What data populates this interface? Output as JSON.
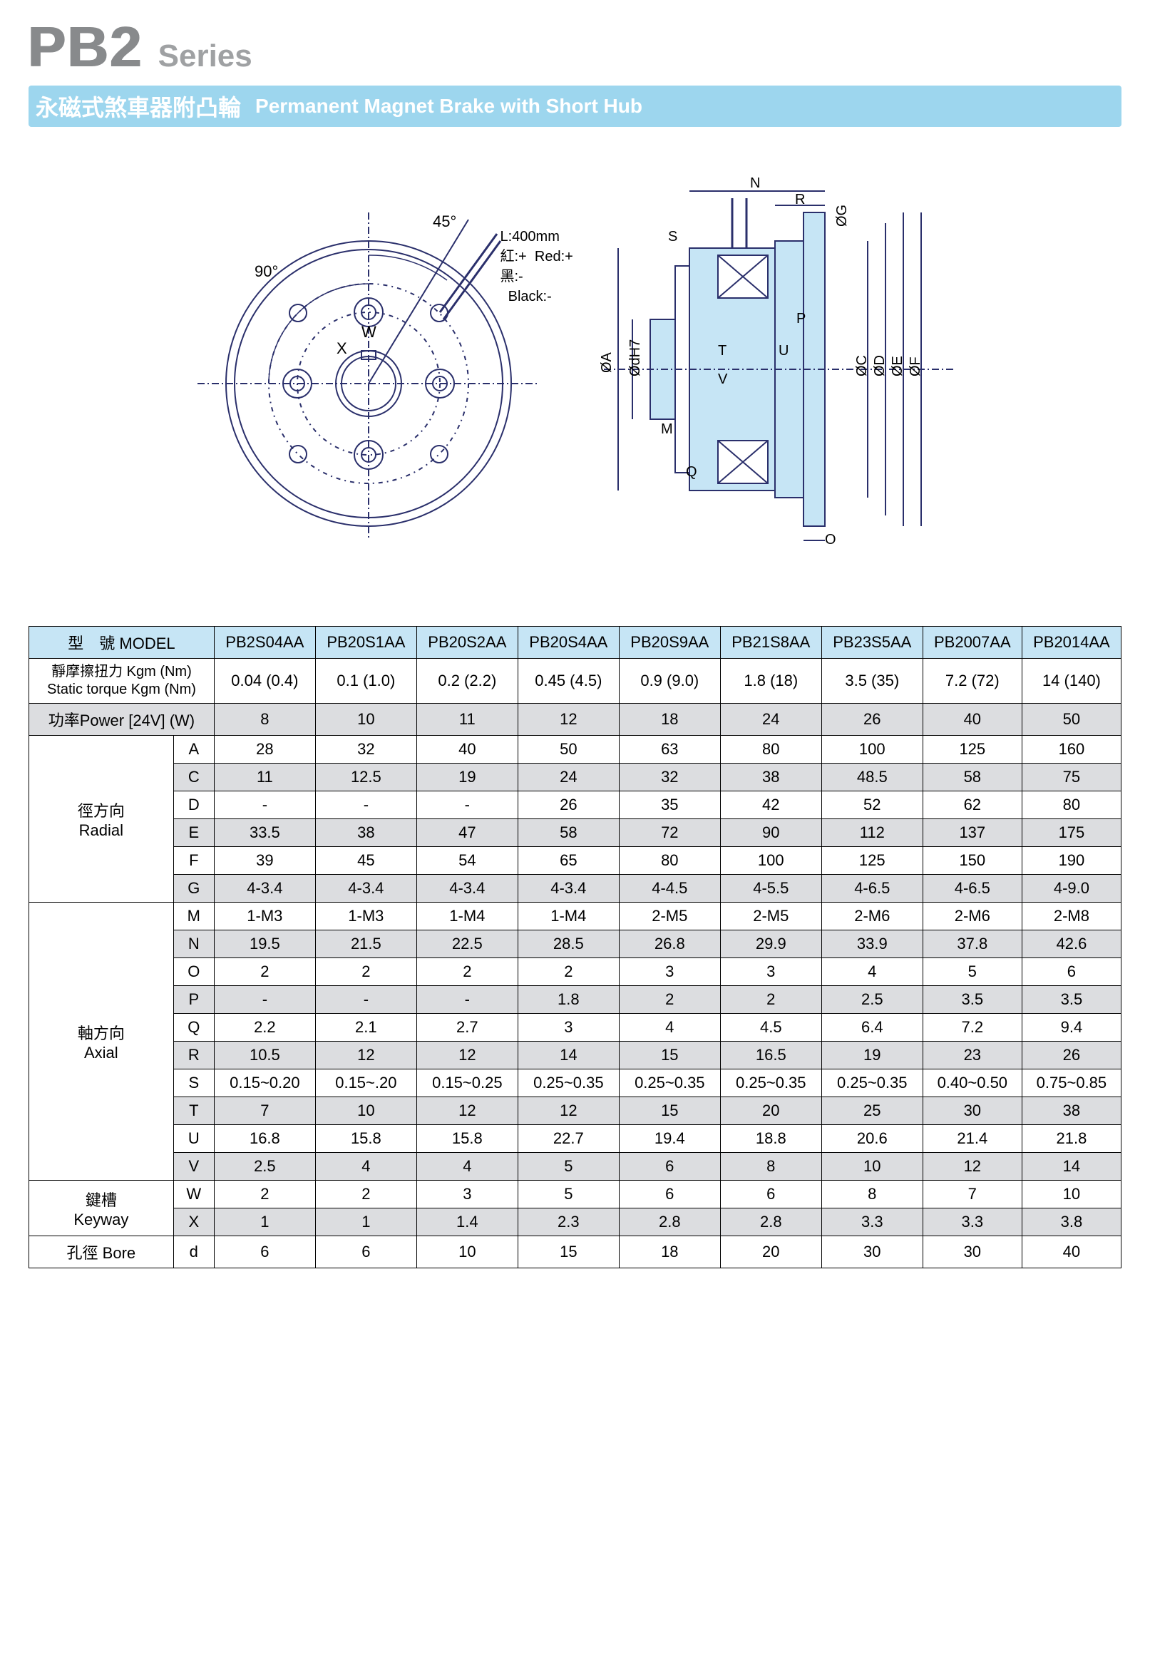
{
  "colors": {
    "accent_blue": "#9dd6ee",
    "header_blue": "#c6e5f5",
    "row_grey": "#dcdde0",
    "title_grey": "#888a8c",
    "border": "#000000",
    "diagram_stroke": "#2a2f6b",
    "diagram_fill": "#c6e5f5"
  },
  "title": {
    "main": "PB2",
    "series": "Series"
  },
  "subtitle": {
    "zh": "永磁式煞車器附凸輪",
    "en": "Permanent Magnet Brake with Short Hub"
  },
  "diagram": {
    "angle_90": "90°",
    "angle_45": "45°",
    "wire_len": "L:400mm",
    "wire_red_zh": "紅:+",
    "wire_red_en": "Red:+",
    "wire_black_zh": "黑:-",
    "wire_black_en": "Black:-",
    "label_W": "W",
    "label_X": "X",
    "label_A": "ØA",
    "label_dH7": "ØdH7",
    "label_C": "ØC",
    "label_D": "ØD",
    "label_E": "ØE",
    "label_F": "ØF",
    "label_G": "ØG",
    "label_M": "M",
    "label_N": "N",
    "label_O": "O",
    "label_P": "P",
    "label_Q": "Q",
    "label_R": "R",
    "label_S": "S",
    "label_T": "T",
    "label_U": "U",
    "label_V": "V"
  },
  "table": {
    "header_model_zh": "型　號",
    "header_model_en": "MODEL",
    "row_torque_zh": "靜摩擦扭力 Kgm (Nm)",
    "row_torque_en": "Static torque Kgm (Nm)",
    "row_power_zh": "功率Power [24V] (W)",
    "group_radial_zh": "徑方向",
    "group_radial_en": "Radial",
    "group_axial_zh": "軸方向",
    "group_axial_en": "Axial",
    "group_keyway_zh": "鍵槽",
    "group_keyway_en": "Keyway",
    "group_bore_zh": "孔徑",
    "group_bore_en": "Bore",
    "models": [
      "PB2S04AA",
      "PB20S1AA",
      "PB20S2AA",
      "PB20S4AA",
      "PB20S9AA",
      "PB21S8AA",
      "PB23S5AA",
      "PB2007AA",
      "PB2014AA"
    ],
    "torque": [
      "0.04 (0.4)",
      "0.1 (1.0)",
      "0.2 (2.2)",
      "0.45 (4.5)",
      "0.9 (9.0)",
      "1.8 (18)",
      "3.5 (35)",
      "7.2 (72)",
      "14 (140)"
    ],
    "power": [
      "8",
      "10",
      "11",
      "12",
      "18",
      "24",
      "26",
      "40",
      "50"
    ],
    "radial": {
      "A": [
        "28",
        "32",
        "40",
        "50",
        "63",
        "80",
        "100",
        "125",
        "160"
      ],
      "C": [
        "11",
        "12.5",
        "19",
        "24",
        "32",
        "38",
        "48.5",
        "58",
        "75"
      ],
      "D": [
        "-",
        "-",
        "-",
        "26",
        "35",
        "42",
        "52",
        "62",
        "80"
      ],
      "E": [
        "33.5",
        "38",
        "47",
        "58",
        "72",
        "90",
        "112",
        "137",
        "175"
      ],
      "F": [
        "39",
        "45",
        "54",
        "65",
        "80",
        "100",
        "125",
        "150",
        "190"
      ],
      "G": [
        "4-3.4",
        "4-3.4",
        "4-3.4",
        "4-3.4",
        "4-4.5",
        "4-5.5",
        "4-6.5",
        "4-6.5",
        "4-9.0"
      ]
    },
    "axial": {
      "M": [
        "1-M3",
        "1-M3",
        "1-M4",
        "1-M4",
        "2-M5",
        "2-M5",
        "2-M6",
        "2-M6",
        "2-M8"
      ],
      "N": [
        "19.5",
        "21.5",
        "22.5",
        "28.5",
        "26.8",
        "29.9",
        "33.9",
        "37.8",
        "42.6"
      ],
      "O": [
        "2",
        "2",
        "2",
        "2",
        "3",
        "3",
        "4",
        "5",
        "6"
      ],
      "P": [
        "-",
        "-",
        "-",
        "1.8",
        "2",
        "2",
        "2.5",
        "3.5",
        "3.5"
      ],
      "Q": [
        "2.2",
        "2.1",
        "2.7",
        "3",
        "4",
        "4.5",
        "6.4",
        "7.2",
        "9.4"
      ],
      "R": [
        "10.5",
        "12",
        "12",
        "14",
        "15",
        "16.5",
        "19",
        "23",
        "26"
      ],
      "S": [
        "0.15~0.20",
        "0.15~.20",
        "0.15~0.25",
        "0.25~0.35",
        "0.25~0.35",
        "0.25~0.35",
        "0.25~0.35",
        "0.40~0.50",
        "0.75~0.85"
      ],
      "T": [
        "7",
        "10",
        "12",
        "12",
        "15",
        "20",
        "25",
        "30",
        "38"
      ],
      "U": [
        "16.8",
        "15.8",
        "15.8",
        "22.7",
        "19.4",
        "18.8",
        "20.6",
        "21.4",
        "21.8"
      ],
      "V": [
        "2.5",
        "4",
        "4",
        "5",
        "6",
        "8",
        "10",
        "12",
        "14"
      ]
    },
    "keyway": {
      "W": [
        "2",
        "2",
        "3",
        "5",
        "6",
        "6",
        "8",
        "7",
        "10"
      ],
      "X": [
        "1",
        "1",
        "1.4",
        "2.3",
        "2.8",
        "2.8",
        "3.3",
        "3.3",
        "3.8"
      ]
    },
    "bore": {
      "d": [
        "6",
        "6",
        "10",
        "15",
        "18",
        "20",
        "30",
        "30",
        "40"
      ]
    }
  }
}
